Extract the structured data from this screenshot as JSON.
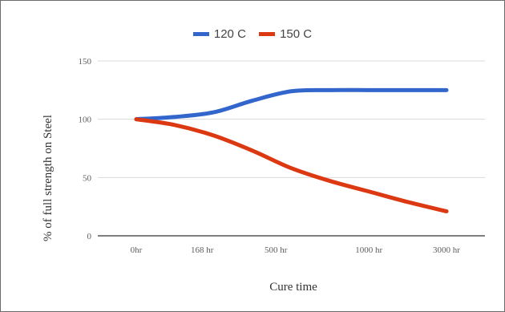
{
  "chart_data": {
    "type": "line",
    "title": "",
    "xlabel": "Cure time",
    "ylabel": "% of full strength on Steel",
    "categories": [
      "0hr",
      "168 hr",
      "500 hr",
      "1000 hr",
      "3000 hr"
    ],
    "x_positions": [
      0,
      0.85,
      1.8,
      3,
      4
    ],
    "series": [
      {
        "name": "120 C",
        "color": "#3366cc",
        "x": [
          0,
          0.5,
          1,
          1.5,
          2,
          2.5,
          3,
          3.5,
          4
        ],
        "values": [
          100,
          102,
          106,
          116,
          124,
          125,
          125,
          125,
          125
        ]
      },
      {
        "name": "150 C",
        "color": "#dc3912",
        "x": [
          0,
          0.5,
          1,
          1.5,
          2,
          2.5,
          3,
          3.5,
          4
        ],
        "values": [
          100,
          95,
          86,
          73,
          58,
          47,
          38,
          29,
          21
        ]
      }
    ],
    "yticks": [
      "0",
      "50",
      "100",
      "150"
    ],
    "ylim": [
      0,
      150
    ],
    "grid": true,
    "legend_position": "top-center"
  }
}
